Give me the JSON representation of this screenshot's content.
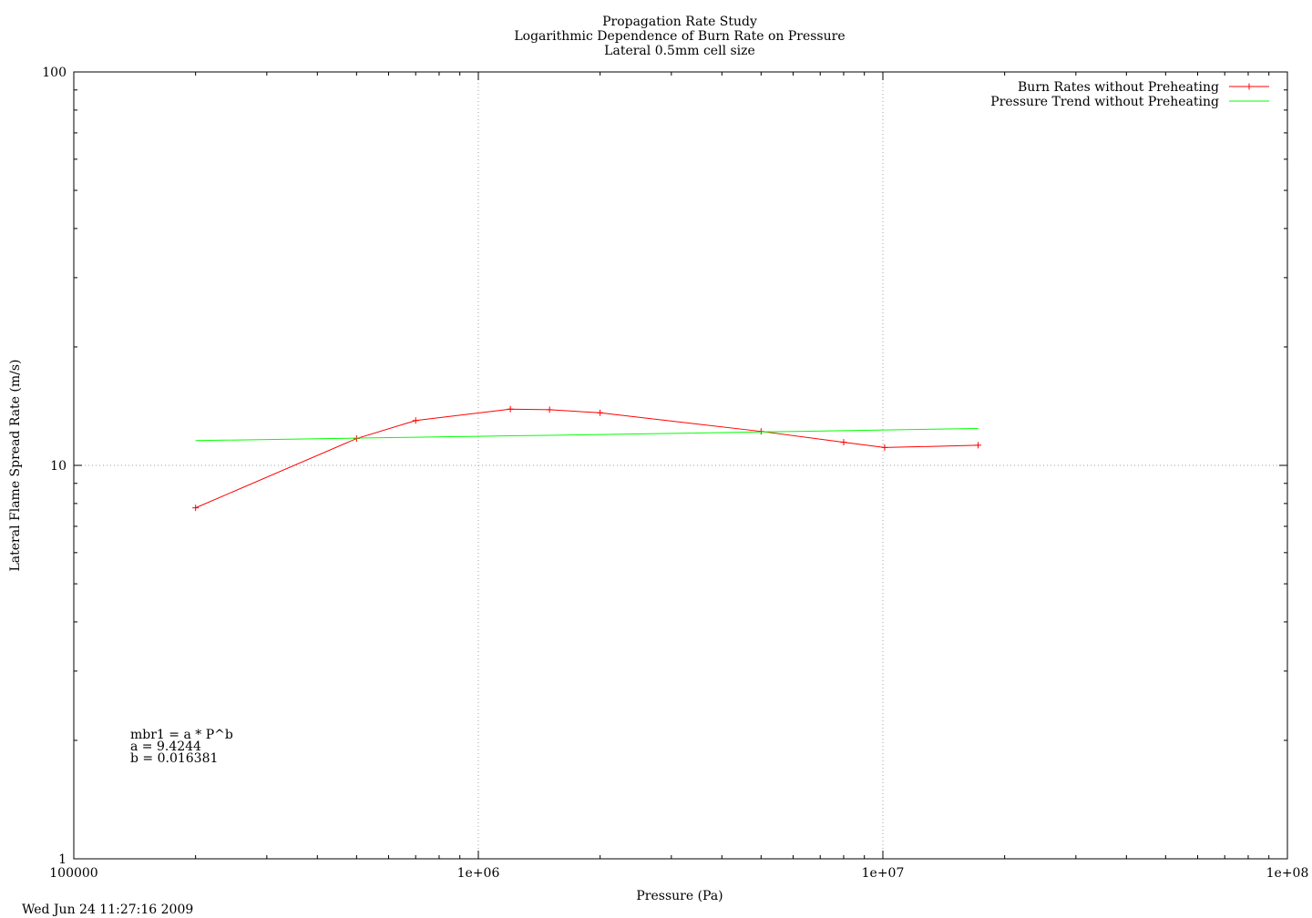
{
  "chart_data": {
    "type": "line",
    "title": "Propagation Rate Study",
    "subtitle_lines": [
      "Logarithmic Dependence of Burn Rate on Pressure",
      "Lateral 0.5mm cell size"
    ],
    "xlabel": "Pressure (Pa)",
    "ylabel": "Lateral Flame Spread Rate (m/s)",
    "x_scale": "log",
    "y_scale": "log",
    "xlim": [
      100000,
      100000000
    ],
    "ylim": [
      1,
      100
    ],
    "x_tick_labels": [
      {
        "value": 100000,
        "label": "100000"
      },
      {
        "value": 1000000,
        "label": "1e+06"
      },
      {
        "value": 10000000,
        "label": "1e+07"
      },
      {
        "value": 100000000,
        "label": "1e+08"
      }
    ],
    "y_tick_labels": [
      {
        "value": 1,
        "label": "1"
      },
      {
        "value": 10,
        "label": "10"
      },
      {
        "value": 100,
        "label": "100"
      }
    ],
    "grid": "major decades dotted",
    "legend_position": "top-right",
    "series": [
      {
        "name": "Burn Rates without Preheating",
        "color": "#ff0000",
        "marker": "plus",
        "x": [
          200000,
          500000,
          700000,
          1200000,
          1500000,
          2000000,
          5000000,
          8000000,
          10100000,
          17200000
        ],
        "y": [
          7.8,
          11.7,
          13.0,
          13.9,
          13.85,
          13.6,
          12.2,
          11.45,
          11.1,
          11.25
        ]
      },
      {
        "name": "Pressure Trend without Preheating",
        "color": "#00ff00",
        "marker": "none",
        "x": [
          200000,
          500000,
          700000,
          1200000,
          1500000,
          2000000,
          5000000,
          8000000,
          10100000,
          17200000
        ],
        "y": [
          11.56,
          11.73,
          11.79,
          11.89,
          11.92,
          11.98,
          12.16,
          12.25,
          12.3,
          12.41
        ]
      }
    ],
    "annotations": [
      "mbr1 = a * P^b",
      "a = 9.4244",
      "b = 0.016381"
    ],
    "timestamp": "Wed Jun 24 11:27:16 2009"
  }
}
